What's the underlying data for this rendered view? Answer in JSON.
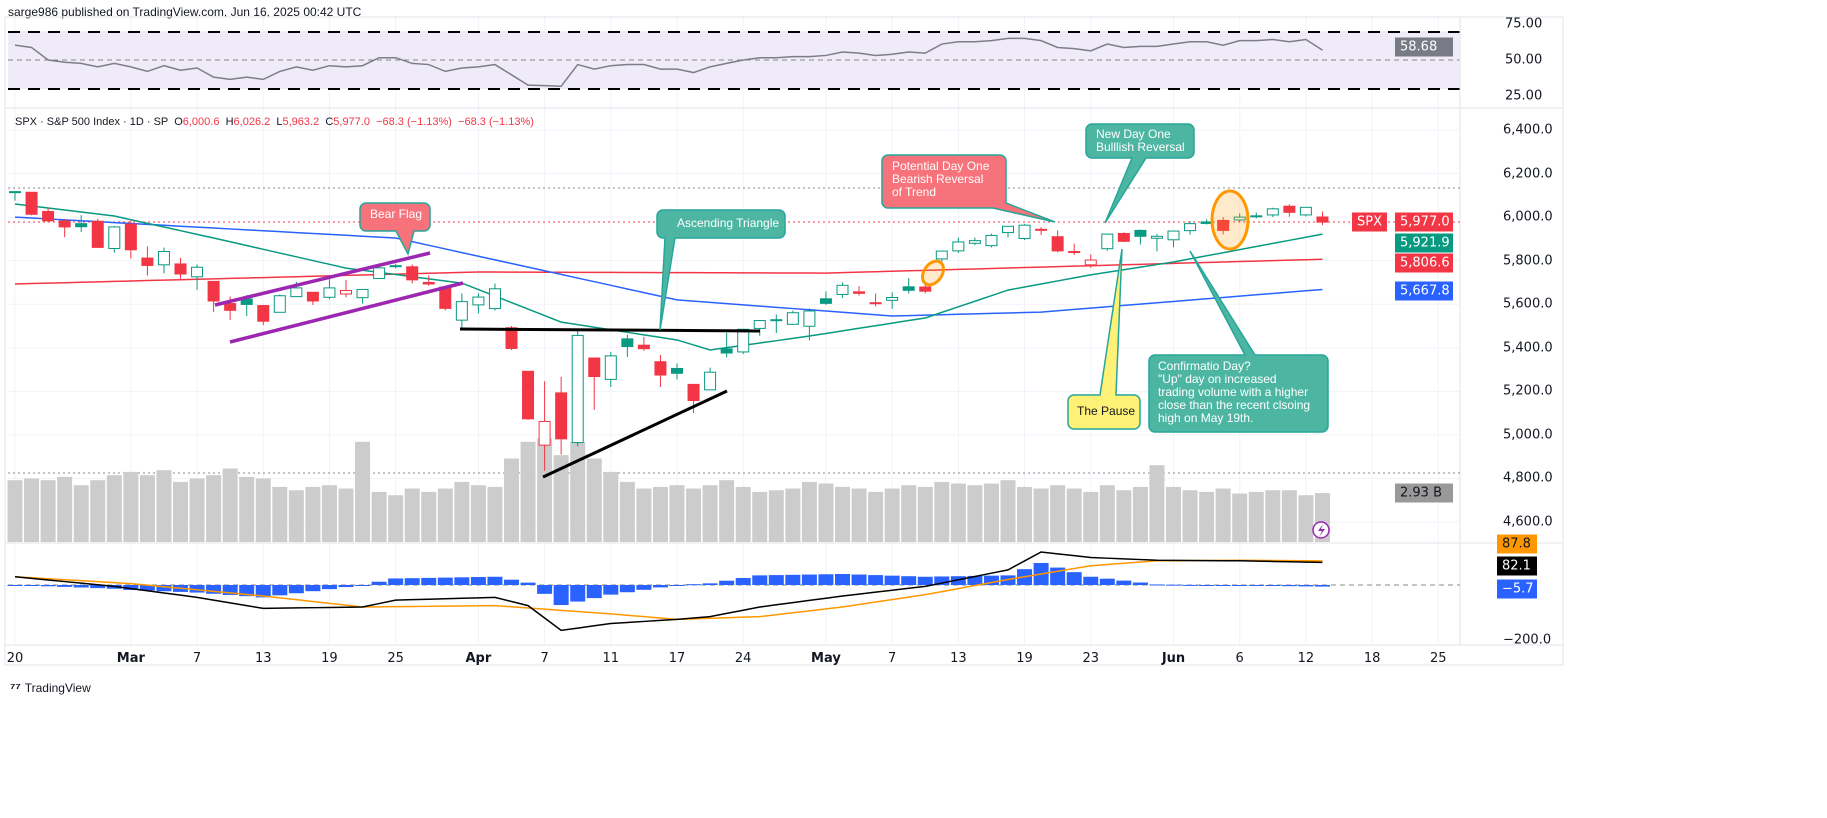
{
  "header": {
    "published": "sarge986 published on TradingView.com, Jun 16, 2025 00:42 UTC"
  },
  "legend": {
    "symbol": "SPX · S&P 500 Index · 1D · SP",
    "open_label": "O",
    "open": "6,000.6",
    "high_label": "H",
    "high": "6,026.2",
    "low_label": "L",
    "low": "5,963.2",
    "close_label": "C",
    "close": "5,977.0",
    "change": "−68.3 (−1.13%)",
    "change2": "−68.3 (−1.13%)"
  },
  "colors": {
    "up": "#089981",
    "down": "#f23645",
    "ema_short": "#089981",
    "ma_mid": "#2962ff",
    "ma_long": "#f23645",
    "rsi": "#7e7e86",
    "rsi_band": "#efebf8",
    "volume": "#cccccc",
    "macd": "#000000",
    "signal": "#ff9800",
    "histogram": "#2962ff"
  },
  "axes": {
    "rsi_ticks": [
      "75.00",
      "50.00",
      "25.00"
    ],
    "price_ticks": [
      "6,400.0",
      "6,200.0",
      "6,000.0",
      "5,800.0",
      "5,600.0",
      "5,400.0",
      "5,200.0",
      "5,000.0",
      "4,800.0",
      "4,600.0"
    ],
    "macd_ticks": [
      "−200.0"
    ],
    "time_ticks": [
      {
        "label": "20",
        "date": "Feb 20"
      },
      {
        "label": "Mar",
        "date": "Mar 3",
        "bold": true
      },
      {
        "label": "7",
        "date": "Mar 7"
      },
      {
        "label": "13",
        "date": "Mar 13"
      },
      {
        "label": "19",
        "date": "Mar 19"
      },
      {
        "label": "25",
        "date": "Mar 25"
      },
      {
        "label": "Apr",
        "date": "Apr 1",
        "bold": true
      },
      {
        "label": "7",
        "date": "Apr 7"
      },
      {
        "label": "11",
        "date": "Apr 11"
      },
      {
        "label": "17",
        "date": "Apr 17"
      },
      {
        "label": "24",
        "date": "Apr 24"
      },
      {
        "label": "May",
        "date": "May 1",
        "bold": true
      },
      {
        "label": "7",
        "date": "May 7"
      },
      {
        "label": "13",
        "date": "May 13"
      },
      {
        "label": "19",
        "date": "May 19"
      },
      {
        "label": "23",
        "date": "May 23"
      },
      {
        "label": "Jun",
        "date": "Jun 2",
        "bold": true
      },
      {
        "label": "6",
        "date": "Jun 6"
      },
      {
        "label": "12",
        "date": "Jun 12"
      },
      {
        "label": "18",
        "date": "Jun 18"
      },
      {
        "label": "25",
        "date": "Jun 25"
      }
    ]
  },
  "badges": {
    "rsi": "58.68",
    "symbol": "SPX",
    "last_price": "5,977.0",
    "ema_short": "5,921.9",
    "ma_long": "5,806.6",
    "ma_mid": "5,667.8",
    "volume": "2.93 B",
    "signal": "87.8",
    "macd": "82.1",
    "histogram": "−5.7"
  },
  "annotations": {
    "bear_flag": "Bear Flag",
    "ascending_triangle": "Ascending Triangle",
    "potential_day_one": "Potential Day One\nBearish Reversal\nof Trend",
    "new_day_one": "New Day One\nBulllish Reversal",
    "the_pause": "The Pause",
    "confirmation_day": "Confirmatio Day?\n\"Up\" day on increased\ntrading volume with a higher\nclose than the recent clsoing\nhigh on May 19th."
  },
  "footer": {
    "brand": "TradingView"
  },
  "chart_data": {
    "type": "candlestick",
    "symbol": "SPX",
    "interval": "1D",
    "price_range": [
      4600,
      6400
    ],
    "grid": true,
    "dates": [
      "Feb 20",
      "Feb 21",
      "Feb 24",
      "Feb 25",
      "Feb 26",
      "Feb 27",
      "Feb 28",
      "Mar 3",
      "Mar 4",
      "Mar 5",
      "Mar 6",
      "Mar 7",
      "Mar 10",
      "Mar 11",
      "Mar 12",
      "Mar 13",
      "Mar 14",
      "Mar 17",
      "Mar 18",
      "Mar 19",
      "Mar 20",
      "Mar 21",
      "Mar 24",
      "Mar 25",
      "Mar 26",
      "Mar 27",
      "Mar 28",
      "Mar 31",
      "Apr 1",
      "Apr 2",
      "Apr 3",
      "Apr 4",
      "Apr 7",
      "Apr 8",
      "Apr 9",
      "Apr 10",
      "Apr 11",
      "Apr 14",
      "Apr 15",
      "Apr 16",
      "Apr 17",
      "Apr 21",
      "Apr 22",
      "Apr 23",
      "Apr 24",
      "Apr 25",
      "Apr 28",
      "Apr 29",
      "Apr 30",
      "May 1",
      "May 2",
      "May 5",
      "May 6",
      "May 7",
      "May 8",
      "May 9",
      "May 12",
      "May 13",
      "May 14",
      "May 15",
      "May 16",
      "May 19",
      "May 20",
      "May 21",
      "May 22",
      "May 23",
      "May 27",
      "May 28",
      "May 29",
      "May 30",
      "Jun 2",
      "Jun 3",
      "Jun 4",
      "Jun 5",
      "Jun 6",
      "Jun 9",
      "Jun 10",
      "Jun 11",
      "Jun 12",
      "Jun 13"
    ],
    "ohlc": [
      [
        6117,
        6118,
        6076,
        6117
      ],
      [
        6114,
        6114,
        6008,
        6013
      ],
      [
        6026,
        6043,
        5977,
        5983
      ],
      [
        5982,
        5992,
        5908,
        5955
      ],
      [
        5970,
        6009,
        5932,
        5956
      ],
      [
        5981,
        5993,
        5858,
        5861
      ],
      [
        5856,
        5959,
        5837,
        5955
      ],
      [
        5968,
        5986,
        5810,
        5850
      ],
      [
        5812,
        5866,
        5732,
        5778
      ],
      [
        5781,
        5860,
        5742,
        5842
      ],
      [
        5785,
        5813,
        5711,
        5739
      ],
      [
        5726,
        5783,
        5666,
        5770
      ],
      [
        5705,
        5705,
        5564,
        5615
      ],
      [
        5603,
        5636,
        5528,
        5572
      ],
      [
        5624,
        5642,
        5546,
        5599
      ],
      [
        5594,
        5597,
        5504,
        5522
      ],
      [
        5563,
        5645,
        5563,
        5639
      ],
      [
        5635,
        5703,
        5635,
        5675
      ],
      [
        5655,
        5655,
        5597,
        5615
      ],
      [
        5632,
        5715,
        5622,
        5675
      ],
      [
        5647,
        5711,
        5632,
        5663
      ],
      [
        5630,
        5670,
        5603,
        5668
      ],
      [
        5718,
        5775,
        5718,
        5767
      ],
      [
        5776,
        5786,
        5765,
        5777
      ],
      [
        5772,
        5783,
        5696,
        5712
      ],
      [
        5700,
        5732,
        5685,
        5693
      ],
      [
        5679,
        5685,
        5572,
        5581
      ],
      [
        5527,
        5650,
        5489,
        5612
      ],
      [
        5597,
        5650,
        5558,
        5633
      ],
      [
        5580,
        5695,
        5571,
        5671
      ],
      [
        5492,
        5500,
        5390,
        5397
      ],
      [
        5292,
        5292,
        5069,
        5074
      ],
      [
        4953,
        5246,
        4835,
        5062
      ],
      [
        5193,
        5267,
        4910,
        4982
      ],
      [
        4965,
        5481,
        4948,
        5457
      ],
      [
        5353,
        5353,
        5115,
        5268
      ],
      [
        5255,
        5381,
        5220,
        5363
      ],
      [
        5441,
        5460,
        5358,
        5406
      ],
      [
        5412,
        5450,
        5386,
        5396
      ],
      [
        5336,
        5367,
        5220,
        5275
      ],
      [
        5305,
        5328,
        5255,
        5283
      ],
      [
        5232,
        5232,
        5101,
        5158
      ],
      [
        5207,
        5309,
        5207,
        5288
      ],
      [
        5395,
        5469,
        5356,
        5376
      ],
      [
        5381,
        5485,
        5371,
        5485
      ],
      [
        5489,
        5528,
        5455,
        5525
      ],
      [
        5529,
        5553,
        5468,
        5528
      ],
      [
        5508,
        5571,
        5505,
        5561
      ],
      [
        5499,
        5581,
        5434,
        5569
      ],
      [
        5625,
        5659,
        5597,
        5604
      ],
      [
        5645,
        5700,
        5629,
        5687
      ],
      [
        5657,
        5683,
        5640,
        5650
      ],
      [
        5605,
        5649,
        5590,
        5607
      ],
      [
        5618,
        5655,
        5579,
        5631
      ],
      [
        5680,
        5720,
        5649,
        5664
      ],
      [
        5679,
        5692,
        5650,
        5660
      ],
      [
        5808,
        5845,
        5784,
        5844
      ],
      [
        5845,
        5906,
        5836,
        5886
      ],
      [
        5880,
        5906,
        5871,
        5892
      ],
      [
        5869,
        5924,
        5861,
        5916
      ],
      [
        5929,
        5958,
        5907,
        5958
      ],
      [
        5902,
        5968,
        5895,
        5963
      ],
      [
        5944,
        5954,
        5918,
        5940
      ],
      [
        5910,
        5939,
        5838,
        5845
      ],
      [
        5841,
        5878,
        5826,
        5842
      ],
      [
        5781,
        5829,
        5767,
        5803
      ],
      [
        5855,
        5922,
        5846,
        5922
      ],
      [
        5925,
        5930,
        5885,
        5889
      ],
      [
        5939,
        5943,
        5874,
        5912
      ],
      [
        5903,
        5922,
        5843,
        5912
      ],
      [
        5896,
        5937,
        5861,
        5936
      ],
      [
        5938,
        5981,
        5920,
        5970
      ],
      [
        5978,
        5990,
        5966,
        5971
      ],
      [
        5985,
        6000,
        5921,
        5939
      ],
      [
        5987,
        6017,
        5978,
        6000
      ],
      [
        6004,
        6021,
        5994,
        6006
      ],
      [
        6010,
        6043,
        6000,
        6038
      ],
      [
        6050,
        6059,
        6002,
        6022
      ],
      [
        6010,
        6045,
        6003,
        6045
      ],
      [
        6000.6,
        6026.2,
        5963.2,
        5977.0
      ]
    ],
    "volume_billions": [
      3.7,
      3.8,
      3.7,
      3.9,
      3.4,
      3.7,
      4.0,
      4.2,
      4.0,
      4.3,
      3.6,
      3.8,
      4.0,
      4.4,
      3.9,
      3.8,
      3.3,
      3.1,
      3.3,
      3.4,
      3.2,
      6.0,
      3.0,
      2.8,
      3.2,
      3.0,
      3.2,
      3.6,
      3.4,
      3.3,
      5.0,
      6.0,
      6.2,
      5.2,
      6.0,
      5.0,
      4.2,
      3.6,
      3.2,
      3.3,
      3.4,
      3.2,
      3.4,
      3.7,
      3.3,
      3.0,
      3.1,
      3.2,
      3.6,
      3.5,
      3.3,
      3.2,
      3.0,
      3.2,
      3.4,
      3.3,
      3.6,
      3.5,
      3.4,
      3.5,
      3.7,
      3.3,
      3.2,
      3.4,
      3.2,
      3.0,
      3.4,
      3.1,
      3.3,
      4.6,
      3.3,
      3.1,
      3.0,
      3.2,
      2.9,
      3.0,
      3.1,
      3.1,
      2.8,
      2.93
    ],
    "rsi": {
      "values": [
        63,
        61,
        50,
        48,
        47,
        44,
        47,
        44,
        40,
        45,
        41,
        43,
        35,
        33,
        35,
        33,
        40,
        44,
        41,
        45,
        44,
        45,
        52,
        52,
        47,
        46,
        40,
        43,
        44,
        46,
        37,
        28,
        27.5,
        27,
        46,
        42,
        45,
        46,
        46,
        42,
        42,
        39,
        44,
        47,
        50,
        52,
        52,
        53,
        53,
        54,
        57,
        56,
        54,
        55,
        57,
        56,
        64,
        66,
        66,
        67,
        69,
        69,
        67,
        61,
        60,
        58,
        64,
        61,
        62,
        62,
        64,
        66,
        66,
        63,
        67,
        67,
        68,
        66,
        68,
        58.68
      ],
      "range": [
        25,
        75
      ],
      "bands": [
        30,
        70
      ]
    },
    "moving_averages": {
      "ema_short": [
        [
          "Feb 20",
          6060
        ],
        [
          "Feb 28",
          6005
        ],
        [
          "Mar 10",
          5904
        ],
        [
          "Mar 20",
          5766
        ],
        [
          "Mar 31",
          5697
        ],
        [
          "Apr 8",
          5518
        ],
        [
          "Apr 17",
          5436
        ],
        [
          "Apr 22",
          5390
        ],
        [
          "Apr 30",
          5454
        ],
        [
          "May 9",
          5537
        ],
        [
          "May 16",
          5665
        ],
        [
          "May 23",
          5735
        ],
        [
          "Jun 2",
          5794
        ],
        [
          "Jun 13",
          5921.9
        ]
      ],
      "ma_mid": [
        [
          "Feb 20",
          6000
        ],
        [
          "Mar 25",
          5904
        ],
        [
          "Apr 17",
          5620
        ],
        [
          "May 7",
          5546
        ],
        [
          "May 20",
          5564
        ],
        [
          "Jun 13",
          5667.8
        ]
      ],
      "ma_long": [
        [
          "Feb 20",
          5693
        ],
        [
          "Apr 1",
          5748
        ],
        [
          "May 1",
          5743
        ],
        [
          "Jun 13",
          5806.6
        ]
      ]
    },
    "macd": {
      "macd": [
        [
          "Feb 20",
          30
        ],
        [
          "Feb 28",
          -5
        ],
        [
          "Mar 7",
          -45
        ],
        [
          "Mar 13",
          -85
        ],
        [
          "Mar 21",
          -80
        ],
        [
          "Mar 25",
          -55
        ],
        [
          "Apr 2",
          -45
        ],
        [
          "Apr 4",
          -75
        ],
        [
          "Apr 8",
          -165
        ],
        [
          "Apr 11",
          -140
        ],
        [
          "Apr 17",
          -125
        ],
        [
          "Apr 22",
          -115
        ],
        [
          "Apr 25",
          -80
        ],
        [
          "May 2",
          -40
        ],
        [
          "May 9",
          -5
        ],
        [
          "May 16",
          55
        ],
        [
          "May 20",
          120
        ],
        [
          "May 23",
          100
        ],
        [
          "May 30",
          90
        ],
        [
          "Jun 6",
          88
        ],
        [
          "Jun 13",
          82.1
        ]
      ],
      "signal": [
        [
          "Feb 20",
          30
        ],
        [
          "Mar 3",
          5
        ],
        [
          "Mar 13",
          -40
        ],
        [
          "Mar 21",
          -80
        ],
        [
          "Apr 2",
          -75
        ],
        [
          "Apr 11",
          -105
        ],
        [
          "Apr 17",
          -125
        ],
        [
          "Apr 25",
          -115
        ],
        [
          "May 2",
          -80
        ],
        [
          "May 9",
          -35
        ],
        [
          "May 16",
          20
        ],
        [
          "May 23",
          70
        ],
        [
          "May 30",
          88
        ],
        [
          "Jun 6",
          90
        ],
        [
          "Jun 13",
          87.8
        ]
      ]
    }
  }
}
